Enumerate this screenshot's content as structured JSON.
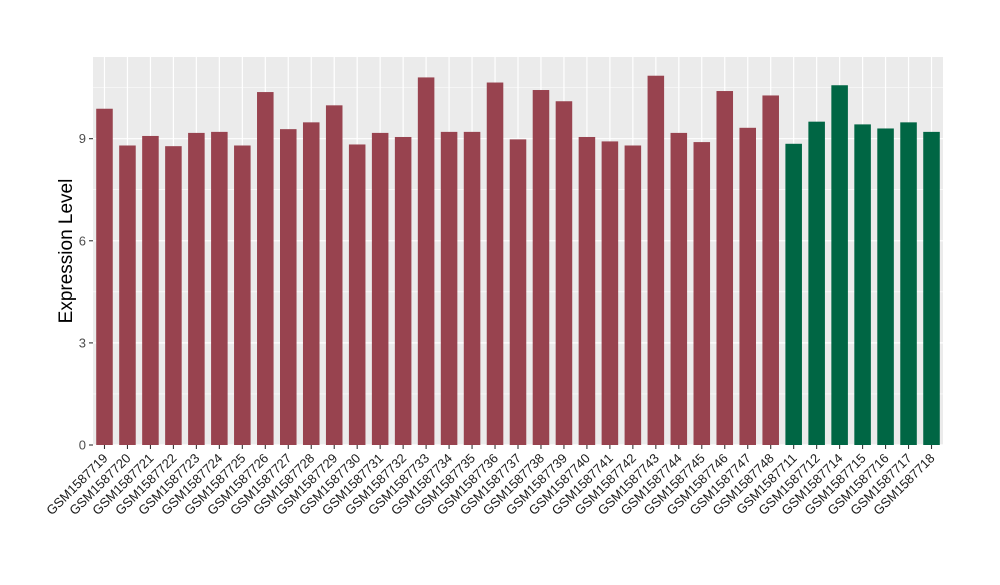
{
  "chart_data": {
    "type": "bar",
    "title": "",
    "xlabel": "",
    "ylabel": "Expression Level",
    "ylim": [
      0,
      11.4
    ],
    "yticks": [
      0,
      3,
      6,
      9
    ],
    "grid": true,
    "legend": "none",
    "colors": {
      "group1": "#98434F",
      "group2": "#006644",
      "panel": "#EBEBEB",
      "grid": "#FFFFFF"
    },
    "categories": [
      "GSM1587719",
      "GSM1587720",
      "GSM1587721",
      "GSM1587722",
      "GSM1587723",
      "GSM1587724",
      "GSM1587725",
      "GSM1587726",
      "GSM1587727",
      "GSM1587728",
      "GSM1587729",
      "GSM1587730",
      "GSM1587731",
      "GSM1587732",
      "GSM1587733",
      "GSM1587734",
      "GSM1587735",
      "GSM1587736",
      "GSM1587737",
      "GSM1587738",
      "GSM1587739",
      "GSM1587740",
      "GSM1587741",
      "GSM1587742",
      "GSM1587743",
      "GSM1587744",
      "GSM1587745",
      "GSM1587746",
      "GSM1587747",
      "GSM1587748",
      "GSM1587711",
      "GSM1587712",
      "GSM1587714",
      "GSM1587715",
      "GSM1587716",
      "GSM1587717",
      "GSM1587718"
    ],
    "values": [
      9.88,
      8.8,
      9.08,
      8.78,
      9.17,
      9.2,
      8.8,
      10.37,
      9.28,
      9.48,
      9.98,
      8.83,
      9.17,
      9.05,
      10.8,
      9.2,
      9.2,
      10.65,
      8.98,
      10.43,
      10.1,
      9.05,
      8.92,
      8.8,
      10.85,
      9.17,
      8.9,
      10.4,
      9.32,
      10.27,
      8.85,
      9.5,
      10.57,
      9.42,
      9.3,
      9.48,
      9.2
    ],
    "groups": [
      "group1",
      "group1",
      "group1",
      "group1",
      "group1",
      "group1",
      "group1",
      "group1",
      "group1",
      "group1",
      "group1",
      "group1",
      "group1",
      "group1",
      "group1",
      "group1",
      "group1",
      "group1",
      "group1",
      "group1",
      "group1",
      "group1",
      "group1",
      "group1",
      "group1",
      "group1",
      "group1",
      "group1",
      "group1",
      "group1",
      "group2",
      "group2",
      "group2",
      "group2",
      "group2",
      "group2",
      "group2"
    ]
  }
}
